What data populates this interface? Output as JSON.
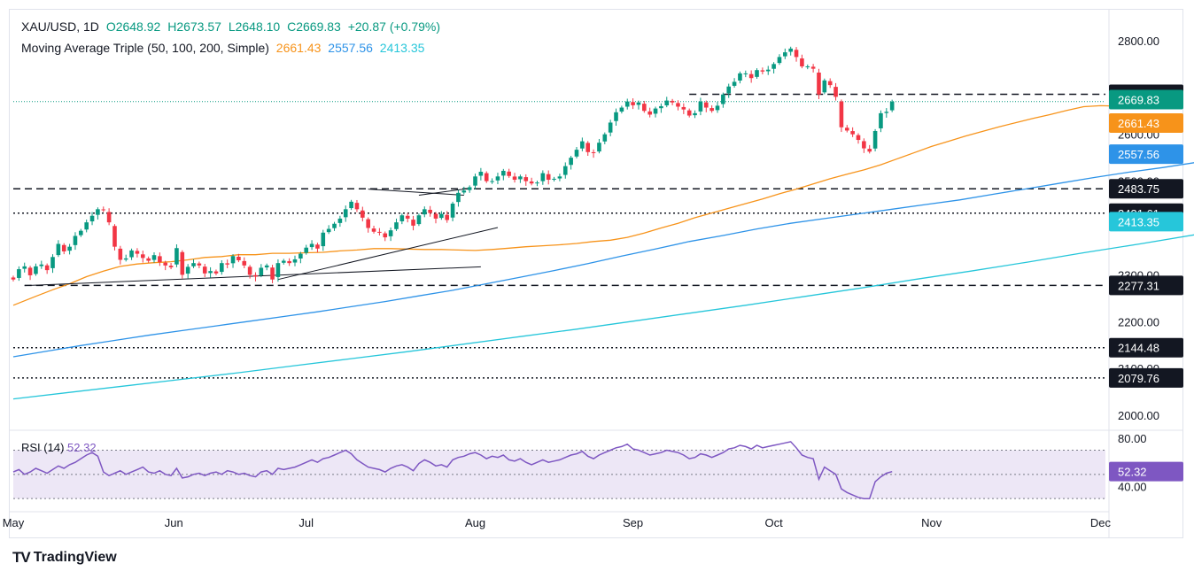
{
  "header": {
    "symbol": "XAU/USD, 1D",
    "open": "O2648.92",
    "high": "H2673.57",
    "low": "L2648.10",
    "close": "C2669.83",
    "change": "+20.87 (+0.79%)",
    "ma_label": "Moving Average Triple (50, 100, 200, Simple)",
    "ma50_value": "2661.43",
    "ma100_value": "2557.56",
    "ma200_value": "2413.35"
  },
  "rsi_legend": {
    "label": "RSI (14)",
    "value": "52.32"
  },
  "branding": {
    "logo": "TV",
    "name": "TradingView"
  },
  "colors": {
    "up": "#089981",
    "down": "#f23645",
    "ma50": "#f7931a",
    "ma100": "#2e93e8",
    "ma200": "#26c6da",
    "rsi": "#7e57c2",
    "rsi_band": "#ede7f6",
    "text": "#131722",
    "axis_text": "#6a6d78",
    "border": "#e0e3eb"
  },
  "chart_data": {
    "type": "candlestick",
    "title": "XAU/USD, 1D",
    "x_tick_labels": [
      "May",
      "Jun",
      "Jul",
      "Aug",
      "Sep",
      "Oct",
      "Nov",
      "Dec"
    ],
    "y_tick_labels": [
      "2000.00",
      "2100.00",
      "2200.00",
      "2300.00",
      "2500.00",
      "2600.00",
      "2800.00"
    ],
    "ylim": [
      1970,
      2830
    ],
    "price_levels": [
      {
        "value": 2685.51,
        "label": "2685.51",
        "style": "dashed",
        "start_day": 120
      },
      {
        "value": 2483.75,
        "label": "2483.75",
        "style": "dashed",
        "start_day": 0
      },
      {
        "value": 2431.61,
        "label": "2431.61",
        "style": "dotted",
        "start_day": 0
      },
      {
        "value": 2277.31,
        "label": "2277.31",
        "style": "dashed",
        "start_day": 2
      },
      {
        "value": 2144.48,
        "label": "2144.48",
        "style": "dotted",
        "start_day": 0
      },
      {
        "value": 2079.76,
        "label": "2079.76",
        "style": "dotted",
        "start_day": 0
      }
    ],
    "price_tags": [
      {
        "value": 2669.83,
        "label": "2669.83",
        "color": "#089981"
      },
      {
        "value": 2661.43,
        "label": "2661.43",
        "color": "#f7931a"
      },
      {
        "value": 2557.56,
        "label": "2557.56",
        "color": "#2e93e8"
      },
      {
        "value": 2413.35,
        "label": "2413.35",
        "color": "#26c6da"
      }
    ],
    "trendlines": [
      {
        "from": [
          2,
          2277
        ],
        "to": [
          83,
          2317
        ]
      },
      {
        "from": [
          47,
          2290
        ],
        "to": [
          86,
          2401
        ]
      },
      {
        "from": [
          63,
          2483
        ],
        "to": [
          80,
          2470
        ]
      },
      {
        "from": [
          72,
          2470
        ],
        "to": [
          80,
          2483
        ]
      }
    ],
    "closes": [
      2290,
      2312,
      2318,
      2299,
      2318,
      2322,
      2310,
      2338,
      2366,
      2350,
      2360,
      2383,
      2394,
      2412,
      2426,
      2440,
      2438,
      2412,
      2360,
      2332,
      2335,
      2352,
      2345,
      2336,
      2330,
      2342,
      2327,
      2320,
      2316,
      2357,
      2300,
      2317,
      2325,
      2320,
      2303,
      2308,
      2303,
      2325,
      2322,
      2340,
      2331,
      2320,
      2300,
      2296,
      2315,
      2320,
      2290,
      2325,
      2330,
      2325,
      2333,
      2345,
      2358,
      2366,
      2356,
      2390,
      2398,
      2409,
      2420,
      2440,
      2456,
      2440,
      2422,
      2400,
      2392,
      2390,
      2380,
      2395,
      2412,
      2427,
      2420,
      2405,
      2427,
      2440,
      2432,
      2420,
      2430,
      2417,
      2452,
      2475,
      2480,
      2487,
      2510,
      2520,
      2500,
      2500,
      2510,
      2522,
      2511,
      2503,
      2510,
      2500,
      2495,
      2497,
      2517,
      2503,
      2505,
      2510,
      2532,
      2550,
      2567,
      2585,
      2562,
      2560,
      2582,
      2600,
      2625,
      2647,
      2657,
      2670,
      2662,
      2668,
      2650,
      2642,
      2655,
      2660,
      2672,
      2668,
      2659,
      2653,
      2640,
      2645,
      2670,
      2657,
      2650,
      2661,
      2685,
      2702,
      2712,
      2730,
      2730,
      2720,
      2737,
      2734,
      2738,
      2750,
      2765,
      2775,
      2783,
      2765,
      2745,
      2745,
      2740,
      2685,
      2715,
      2705,
      2680,
      2615,
      2608,
      2600,
      2588,
      2570,
      2563,
      2607,
      2645,
      2648,
      2669.83
    ],
    "ma50": [
      2235,
      2254,
      2268,
      2281,
      2296,
      2308,
      2318,
      2323,
      2326,
      2328,
      2332,
      2337,
      2339,
      2343,
      2343,
      2346,
      2346,
      2347,
      2348,
      2351,
      2353,
      2356,
      2356,
      2355,
      2354,
      2354,
      2353,
      2352,
      2354,
      2357,
      2360,
      2362,
      2364,
      2367,
      2371,
      2374,
      2380,
      2389,
      2400,
      2410,
      2422,
      2432,
      2442,
      2452,
      2462,
      2473,
      2483,
      2494,
      2505,
      2515,
      2524,
      2535,
      2548,
      2561,
      2574,
      2585,
      2596,
      2606,
      2616,
      2625,
      2634,
      2642,
      2651,
      2659,
      2661,
      2660,
      2661.43
    ],
    "ma50_x": [
      0,
      4,
      7,
      10,
      13,
      16,
      19,
      22,
      25,
      28,
      31,
      34,
      37,
      40,
      43,
      46,
      49,
      52,
      55,
      58,
      61,
      64,
      67,
      70,
      73,
      76,
      79,
      82,
      85,
      88,
      91,
      94,
      97,
      100,
      103,
      106,
      109,
      112,
      115,
      118,
      121,
      124,
      127,
      130,
      133,
      136,
      139,
      142,
      145,
      148,
      151,
      154,
      157,
      160,
      163,
      166,
      169,
      172,
      175,
      178,
      181,
      184,
      187,
      190,
      193,
      196,
      199
    ],
    "ma100": [
      2125,
      2137,
      2149,
      2160,
      2171,
      2181,
      2191,
      2201,
      2211,
      2221,
      2232,
      2243,
      2255,
      2267,
      2281,
      2295,
      2309,
      2324,
      2340,
      2355,
      2371,
      2384,
      2398,
      2410,
      2420,
      2430,
      2440,
      2450,
      2460,
      2472,
      2484,
      2496,
      2508,
      2519,
      2529,
      2540,
      2550,
      2557.56
    ],
    "ma100_x": [
      0,
      6,
      12,
      18,
      24,
      30,
      36,
      42,
      48,
      54,
      60,
      66,
      72,
      78,
      84,
      90,
      96,
      102,
      108,
      114,
      120,
      126,
      132,
      138,
      144,
      150,
      156,
      162,
      168,
      174,
      180,
      186,
      192,
      198,
      204,
      210,
      216,
      220
    ],
    "ma200": [
      2035,
      2049,
      2063,
      2077,
      2091,
      2106,
      2121,
      2136,
      2152,
      2168,
      2184,
      2201,
      2218,
      2235,
      2253,
      2271,
      2290,
      2308,
      2327,
      2347,
      2366,
      2386,
      2405,
      2413.35
    ],
    "ma200_x": [
      0,
      10,
      20,
      30,
      40,
      50,
      60,
      70,
      80,
      90,
      100,
      110,
      120,
      130,
      140,
      150,
      160,
      170,
      180,
      190,
      200,
      210,
      216,
      220
    ],
    "rsi": {
      "ylim": [
        25,
        85
      ],
      "y_tick_labels": [
        "80.00",
        "40.00"
      ],
      "levels": [
        70,
        50,
        30
      ],
      "last_label": "52.32",
      "values": [
        52,
        54,
        50,
        52,
        55,
        53,
        51,
        54,
        57,
        55,
        58,
        60,
        63,
        66,
        68,
        65,
        52,
        49,
        51,
        53,
        50,
        52,
        54,
        56,
        52,
        51,
        53,
        50,
        49,
        55,
        47,
        48,
        50,
        51,
        49,
        51,
        52,
        50,
        53,
        52,
        50,
        51,
        49,
        48,
        52,
        53,
        50,
        55,
        54,
        55,
        56,
        58,
        60,
        62,
        60,
        63,
        64,
        66,
        68,
        70,
        67,
        62,
        59,
        56,
        55,
        54,
        52,
        55,
        57,
        58,
        56,
        53,
        59,
        62,
        60,
        57,
        58,
        56,
        62,
        64,
        65,
        67,
        68,
        66,
        63,
        65,
        64,
        66,
        62,
        61,
        63,
        60,
        58,
        60,
        62,
        60,
        61,
        62,
        64,
        66,
        67,
        69,
        65,
        63,
        66,
        68,
        70,
        72,
        73,
        75,
        71,
        70,
        68,
        66,
        67,
        68,
        70,
        69,
        68,
        66,
        63,
        64,
        67,
        66,
        64,
        66,
        68,
        71,
        72,
        74,
        73,
        71,
        74,
        72,
        73,
        74,
        75,
        76,
        77,
        72,
        66,
        64,
        63,
        46,
        56,
        53,
        50,
        38,
        35,
        33,
        31,
        30,
        30,
        44,
        48,
        51,
        52.32
      ]
    }
  }
}
